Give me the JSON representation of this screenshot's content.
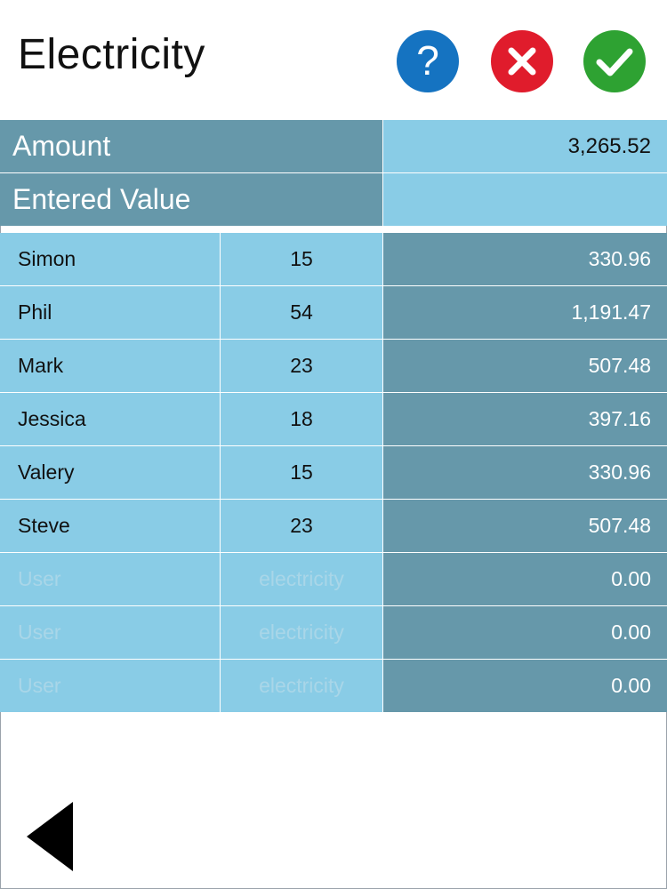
{
  "header": {
    "title": "Electricity",
    "help_icon": "question-mark",
    "cancel_icon": "x-mark",
    "confirm_icon": "check-mark",
    "colors": {
      "help": "#1573c1",
      "cancel": "#e01c2c",
      "confirm": "#2ea232"
    }
  },
  "summary": {
    "amount_label": "Amount",
    "amount_value": "3,265.52",
    "entered_label": "Entered Value",
    "entered_value": ""
  },
  "rows": [
    {
      "name": "Simon",
      "units": "15",
      "amount": "330.96"
    },
    {
      "name": "Phil",
      "units": "54",
      "amount": "1,191.47"
    },
    {
      "name": "Mark",
      "units": "23",
      "amount": "507.48"
    },
    {
      "name": "Jessica",
      "units": "18",
      "amount": "397.16"
    },
    {
      "name": "Valery",
      "units": "15",
      "amount": "330.96"
    },
    {
      "name": "Steve",
      "units": "23",
      "amount": "507.48"
    },
    {
      "name": "",
      "name_placeholder": "User",
      "units": "",
      "units_placeholder": "electricity",
      "amount": "0.00"
    },
    {
      "name": "",
      "name_placeholder": "User",
      "units": "",
      "units_placeholder": "electricity",
      "amount": "0.00"
    },
    {
      "name": "",
      "name_placeholder": "User",
      "units": "",
      "units_placeholder": "electricity",
      "amount": "0.00"
    }
  ],
  "footer": {
    "back_icon": "triangle-left"
  },
  "colors": {
    "dark_cell": "#6698aa",
    "light_cell": "#89cce6"
  }
}
